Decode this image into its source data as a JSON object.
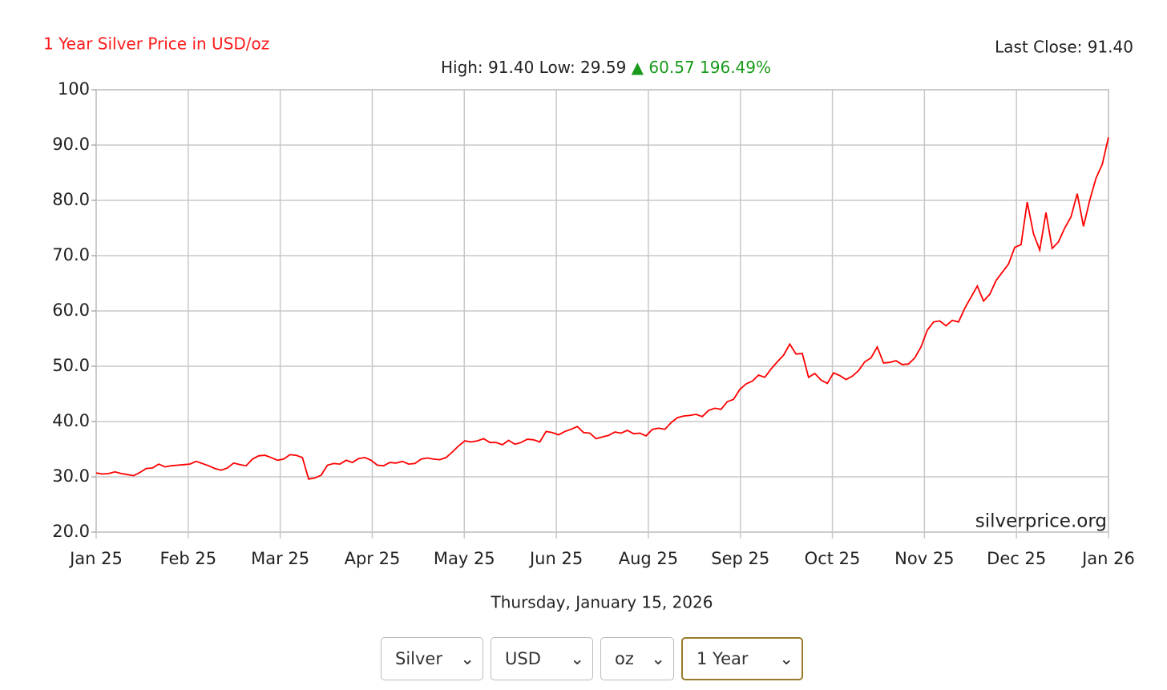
{
  "chart_data": {
    "type": "line",
    "title": "1 Year Silver Price in USD/oz",
    "last_close": "Last Close: 91.40",
    "stats": [
      "High: 91.40",
      "Low: 29.59",
      "▲ 60.57 196.49%"
    ],
    "watermark": "silverprice.org",
    "date": "Thursday, January 15, 2026",
    "color": "#ff0000",
    "grid": true,
    "ylim": [
      20,
      100
    ],
    "yticks": [
      {
        "value": 20,
        "label": "20.0"
      },
      {
        "value": 30,
        "label": "30.0"
      },
      {
        "value": 40,
        "label": "40.0"
      },
      {
        "value": 50,
        "label": "50.0"
      },
      {
        "value": 60,
        "label": "60.0"
      },
      {
        "value": 70,
        "label": "70.0"
      },
      {
        "value": 80,
        "label": "80.0"
      },
      {
        "value": 90,
        "label": "90.0"
      },
      100
    ],
    "xticks": [
      "Jan 25",
      "Feb 25",
      "Mar 25",
      "Apr 25",
      "May 25",
      "Jun 25",
      "Aug 25",
      "Sep 25",
      "Oct 25",
      "Nov 25",
      "Dec 25",
      "Jan 26"
    ],
    "values": [
      30.7,
      30.5,
      30.6,
      30.9,
      30.6,
      30.4,
      30.2,
      30.8,
      31.5,
      31.6,
      32.3,
      31.8,
      32.0,
      32.1,
      32.2,
      32.3,
      32.8,
      32.4,
      32.0,
      31.5,
      31.2,
      31.6,
      32.5,
      32.2,
      32.0,
      33.2,
      33.8,
      33.9,
      33.5,
      33.0,
      33.2,
      34.0,
      33.9,
      33.5,
      29.6,
      29.8,
      30.3,
      32.1,
      32.4,
      32.3,
      33.0,
      32.6,
      33.3,
      33.5,
      33.0,
      32.1,
      32.0,
      32.6,
      32.5,
      32.8,
      32.3,
      32.4,
      33.2,
      33.4,
      33.2,
      33.1,
      33.5,
      34.5,
      35.6,
      36.5,
      36.3,
      36.5,
      36.9,
      36.2,
      36.2,
      35.8,
      36.6,
      35.9,
      36.2,
      36.8,
      36.7,
      36.3,
      38.2,
      38.0,
      37.6,
      38.2,
      38.6,
      39.1,
      38.0,
      37.9,
      36.9,
      37.2,
      37.5,
      38.1,
      37.9,
      38.4,
      37.8,
      37.9,
      37.4,
      38.6,
      38.8,
      38.6,
      39.8,
      40.7,
      41.0,
      41.1,
      41.3,
      40.9,
      42.0,
      42.4,
      42.2,
      43.6,
      44.0,
      45.8,
      46.8,
      47.3,
      48.4,
      48.0,
      49.5,
      50.8,
      52.0,
      54.0,
      52.2,
      52.3,
      48.0,
      48.7,
      47.5,
      46.9,
      48.8,
      48.3,
      47.6,
      48.2,
      49.2,
      50.8,
      51.5,
      53.5,
      50.6,
      50.7,
      51.0,
      50.3,
      50.4,
      51.5,
      53.5,
      56.5,
      58.0,
      58.2,
      57.3,
      58.3,
      58.0,
      60.5,
      62.5,
      64.5,
      61.8,
      63.0,
      65.5,
      67.0,
      68.5,
      71.5,
      72.0,
      79.7,
      74.0,
      71.0,
      77.8,
      71.3,
      72.5,
      75.0,
      77.0,
      81.2,
      75.3,
      80.0,
      84.0,
      86.5,
      91.4
    ]
  },
  "controls": [
    "Silver",
    "USD",
    "oz",
    "1 Year"
  ]
}
